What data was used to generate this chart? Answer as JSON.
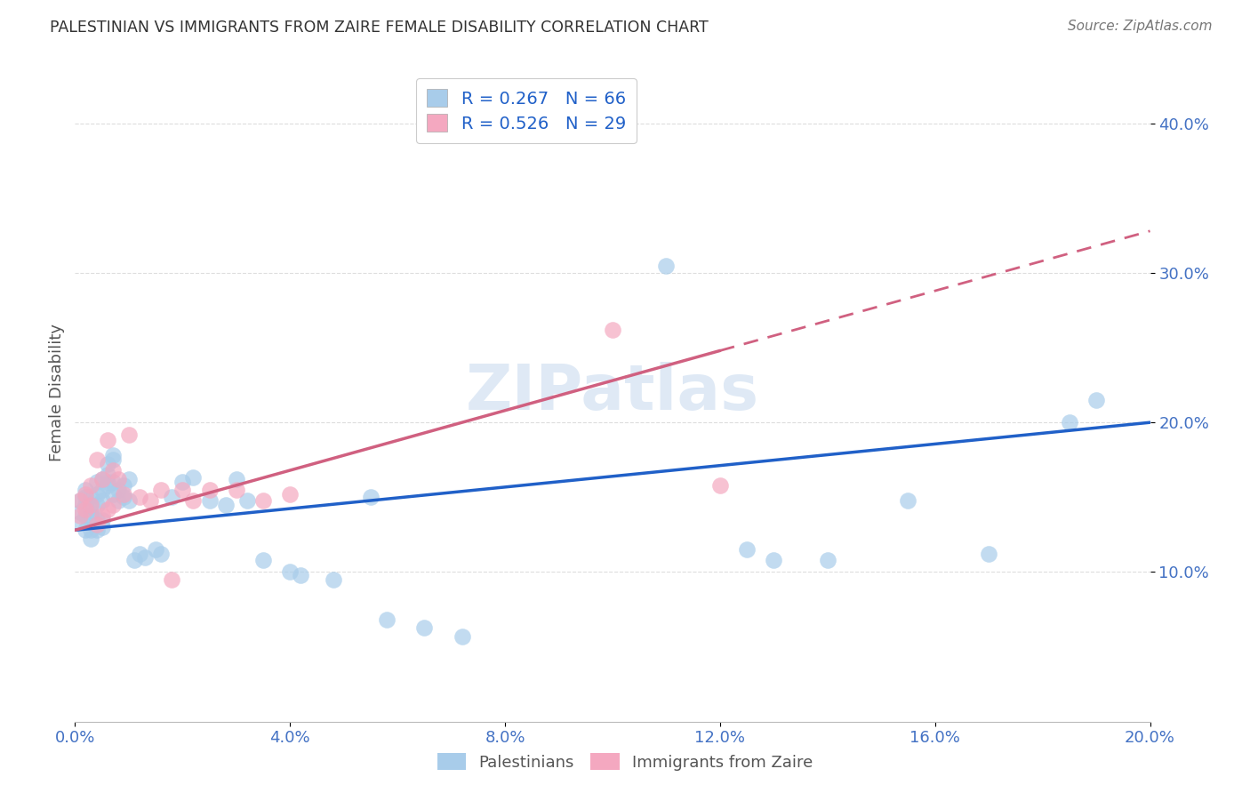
{
  "title": "PALESTINIAN VS IMMIGRANTS FROM ZAIRE FEMALE DISABILITY CORRELATION CHART",
  "source": "Source: ZipAtlas.com",
  "ylabel": "Female Disability",
  "xlabel": "",
  "watermark": "ZIPatlas",
  "legend_blue_r": "0.267",
  "legend_blue_n": "66",
  "legend_pink_r": "0.526",
  "legend_pink_n": "29",
  "xlim": [
    0.0,
    0.2
  ],
  "ylim": [
    0.0,
    0.44
  ],
  "yticks": [
    0.1,
    0.2,
    0.3,
    0.4
  ],
  "xticks": [
    0.0,
    0.04,
    0.08,
    0.12,
    0.16,
    0.2
  ],
  "blue_color": "#A8CCEA",
  "pink_color": "#F4A8C0",
  "blue_line_color": "#2060C8",
  "pink_line_color": "#D06080",
  "legend_text_color": "#2060C8",
  "tick_label_color": "#4472C4",
  "title_color": "#333333",
  "background_color": "#FFFFFF",
  "grid_color": "#DDDDDD",
  "palestinians_x": [
    0.001,
    0.001,
    0.001,
    0.002,
    0.002,
    0.002,
    0.002,
    0.002,
    0.003,
    0.003,
    0.003,
    0.003,
    0.003,
    0.003,
    0.004,
    0.004,
    0.004,
    0.004,
    0.004,
    0.005,
    0.005,
    0.005,
    0.005,
    0.005,
    0.006,
    0.006,
    0.006,
    0.006,
    0.007,
    0.007,
    0.007,
    0.007,
    0.008,
    0.008,
    0.009,
    0.009,
    0.01,
    0.01,
    0.011,
    0.012,
    0.013,
    0.015,
    0.016,
    0.018,
    0.02,
    0.022,
    0.025,
    0.028,
    0.03,
    0.032,
    0.035,
    0.04,
    0.042,
    0.048,
    0.055,
    0.058,
    0.065,
    0.072,
    0.11,
    0.125,
    0.13,
    0.14,
    0.155,
    0.17,
    0.185,
    0.19
  ],
  "palestinians_y": [
    0.133,
    0.14,
    0.148,
    0.138,
    0.145,
    0.15,
    0.155,
    0.128,
    0.14,
    0.145,
    0.15,
    0.138,
    0.128,
    0.122,
    0.145,
    0.152,
    0.16,
    0.135,
    0.128,
    0.148,
    0.155,
    0.162,
    0.135,
    0.13,
    0.16,
    0.165,
    0.158,
    0.172,
    0.175,
    0.178,
    0.16,
    0.152,
    0.148,
    0.155,
    0.15,
    0.158,
    0.148,
    0.162,
    0.108,
    0.112,
    0.11,
    0.115,
    0.112,
    0.15,
    0.16,
    0.163,
    0.148,
    0.145,
    0.162,
    0.148,
    0.108,
    0.1,
    0.098,
    0.095,
    0.15,
    0.068,
    0.063,
    0.057,
    0.305,
    0.115,
    0.108,
    0.108,
    0.148,
    0.112,
    0.2,
    0.215
  ],
  "zaire_x": [
    0.001,
    0.001,
    0.002,
    0.002,
    0.003,
    0.003,
    0.004,
    0.004,
    0.005,
    0.005,
    0.006,
    0.006,
    0.007,
    0.007,
    0.008,
    0.009,
    0.01,
    0.012,
    0.014,
    0.016,
    0.018,
    0.02,
    0.022,
    0.025,
    0.03,
    0.035,
    0.04,
    0.1,
    0.12
  ],
  "zaire_y": [
    0.148,
    0.138,
    0.152,
    0.142,
    0.145,
    0.158,
    0.132,
    0.175,
    0.138,
    0.162,
    0.142,
    0.188,
    0.145,
    0.168,
    0.162,
    0.152,
    0.192,
    0.15,
    0.148,
    0.155,
    0.095,
    0.155,
    0.148,
    0.155,
    0.155,
    0.148,
    0.152,
    0.262,
    0.158
  ],
  "blue_intercept": 0.128,
  "blue_slope": 0.36,
  "pink_intercept": 0.128,
  "pink_slope": 1.0
}
